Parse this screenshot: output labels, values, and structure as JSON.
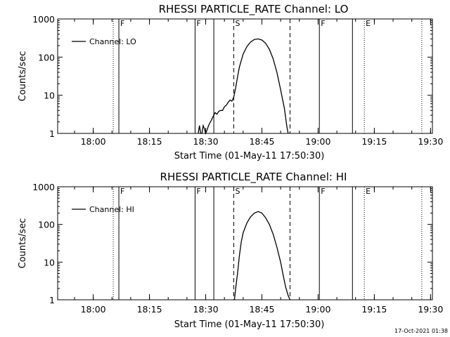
{
  "chart_data": [
    {
      "type": "line",
      "title": "RHESSI PARTICLE_RATE Channel: LO",
      "xlabel": "Start Time (01-May-11 17:50:30)",
      "ylabel": "Counts/sec",
      "y_scale": "log",
      "ylim": [
        1,
        1000
      ],
      "y_ticks": [
        1,
        10,
        100,
        1000
      ],
      "y_tick_labels": [
        "1",
        "10",
        "100",
        "1000"
      ],
      "xlim": [
        "17:50:30",
        "19:30:30"
      ],
      "x_ticks": [
        "18:00",
        "18:15",
        "18:30",
        "18:45",
        "19:00",
        "19:15",
        "19:30"
      ],
      "grid": false,
      "legend": {
        "position": "top-left",
        "entries": [
          "Channel: LO"
        ]
      },
      "series": [
        {
          "name": "Channel: LO",
          "x": [
            "18:28:00",
            "18:28:20",
            "18:28:40",
            "18:29:00",
            "18:29:20",
            "18:29:40",
            "18:30:00",
            "18:30:20",
            "18:30:40",
            "18:31:00",
            "18:31:30",
            "18:32:00",
            "18:32:30",
            "18:33:00",
            "18:33:30",
            "18:34:00",
            "18:34:30",
            "18:35:00",
            "18:35:30",
            "18:36:00",
            "18:36:30",
            "18:37:00",
            "18:37:30",
            "18:38:00",
            "18:38:30",
            "18:39:00",
            "18:40:00",
            "18:41:00",
            "18:42:00",
            "18:43:00",
            "18:44:00",
            "18:45:00",
            "18:46:00",
            "18:47:00",
            "18:48:00",
            "18:49:00",
            "18:50:00",
            "18:51:00",
            "18:51:40",
            "18:52:00"
          ],
          "values": [
            1.0,
            1.6,
            1.0,
            1.0,
            1.6,
            1.3,
            1.0,
            1.2,
            1.5,
            1.8,
            2.2,
            2.8,
            3.5,
            3.2,
            3.8,
            4.0,
            4.0,
            5.0,
            5.5,
            6.5,
            7.5,
            7.0,
            9.0,
            16,
            30,
            55,
            120,
            190,
            250,
            290,
            300,
            280,
            230,
            160,
            90,
            40,
            14,
            4.5,
            1.5,
            1.0
          ]
        }
      ],
      "markers": [
        {
          "label": "",
          "time": "18:05:20",
          "style": "dotted"
        },
        {
          "label": "F",
          "time": "18:06:50",
          "style": "solid"
        },
        {
          "label": "F",
          "time": "18:27:10",
          "style": "solid"
        },
        {
          "label": "",
          "time": "18:32:10",
          "style": "solid"
        },
        {
          "label": "S",
          "time": "18:37:30",
          "style": "dashed"
        },
        {
          "label": "",
          "time": "18:52:30",
          "style": "dashed"
        },
        {
          "label": "F",
          "time": "19:00:20",
          "style": "solid"
        },
        {
          "label": "",
          "time": "19:09:10",
          "style": "solid"
        },
        {
          "label": "E",
          "time": "19:12:20",
          "style": "dotted"
        },
        {
          "label": "",
          "time": "19:27:40",
          "style": "dotted"
        }
      ]
    },
    {
      "type": "line",
      "title": "RHESSI PARTICLE_RATE Channel: HI",
      "xlabel": "Start Time (01-May-11 17:50:30)",
      "ylabel": "Counts/sec",
      "y_scale": "log",
      "ylim": [
        1,
        1000
      ],
      "y_ticks": [
        1,
        10,
        100,
        1000
      ],
      "y_tick_labels": [
        "1",
        "10",
        "100",
        "1000"
      ],
      "xlim": [
        "17:50:30",
        "19:30:30"
      ],
      "x_ticks": [
        "18:00",
        "18:15",
        "18:30",
        "18:45",
        "19:00",
        "19:15",
        "19:30"
      ],
      "grid": false,
      "legend": {
        "position": "top-left",
        "entries": [
          "Channel: HI"
        ]
      },
      "series": [
        {
          "name": "Channel: HI",
          "x": [
            "18:37:40",
            "18:38:00",
            "18:38:30",
            "18:39:00",
            "18:39:30",
            "18:40:00",
            "18:41:00",
            "18:42:00",
            "18:43:00",
            "18:44:00",
            "18:45:00",
            "18:46:00",
            "18:47:00",
            "18:48:00",
            "18:49:00",
            "18:50:00",
            "18:50:40",
            "18:51:20",
            "18:52:00",
            "18:52:30"
          ],
          "values": [
            1.0,
            2.0,
            5.0,
            15,
            35,
            60,
            110,
            160,
            200,
            220,
            200,
            150,
            100,
            55,
            25,
            10,
            4.5,
            2.2,
            1.3,
            1.0
          ]
        }
      ],
      "markers": [
        {
          "label": "",
          "time": "18:05:20",
          "style": "dotted"
        },
        {
          "label": "F",
          "time": "18:06:50",
          "style": "solid"
        },
        {
          "label": "F",
          "time": "18:27:10",
          "style": "solid"
        },
        {
          "label": "",
          "time": "18:32:10",
          "style": "solid"
        },
        {
          "label": "S",
          "time": "18:37:30",
          "style": "dashed"
        },
        {
          "label": "",
          "time": "18:52:30",
          "style": "dashed"
        },
        {
          "label": "F",
          "time": "19:00:20",
          "style": "solid"
        },
        {
          "label": "",
          "time": "19:09:10",
          "style": "solid"
        },
        {
          "label": "E",
          "time": "19:12:20",
          "style": "dotted"
        },
        {
          "label": "",
          "time": "19:27:40",
          "style": "dotted"
        }
      ]
    }
  ],
  "footer": {
    "timestamp": "17-Oct-2021 01:38"
  }
}
